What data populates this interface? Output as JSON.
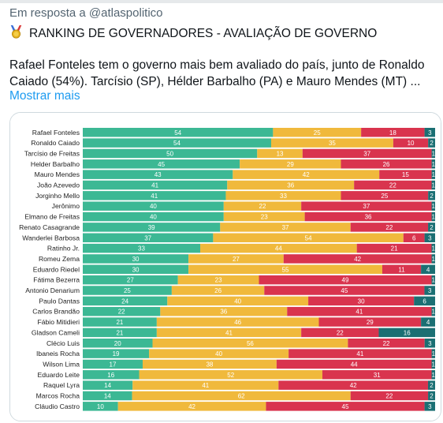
{
  "reply": {
    "prefix": "Em resposta a",
    "handle": "@atlaspolitico"
  },
  "tweet": {
    "title": "RANKING DE GOVERNADORES - AVALIAÇÃO DE GOVERNO",
    "text_line1": "Rafael Fonteles tem o governo mais bem avaliado do país, junto de Ronaldo",
    "text_line2": "Caiado (54%). Tarcísio (SP), Hélder Barbalho (PA) e Mauro Mendes (MT) ...",
    "show_more": "Mostrar mais"
  },
  "icons": {
    "medal": "medal-icon"
  },
  "colors": {
    "positive": "#3cb894",
    "regular": "#f0b93c",
    "negative": "#d9344e",
    "unknown": "#1b6f73",
    "link": "#1d9bf0"
  },
  "chart_data": {
    "type": "bar",
    "orientation": "horizontal-stacked-100",
    "categories": [
      "Rafael Fonteles",
      "Ronaldo Caiado",
      "Tarcísio de Freitas",
      "Helder Barbalho",
      "Mauro Mendes",
      "João Azevedo",
      "Jorginho Mello",
      "Jerônimo",
      "Elmano de Freitas",
      "Renato Casagrande",
      "Wanderlei Barbosa",
      "Ratinho Jr.",
      "Romeu Zema",
      "Eduardo Riedel",
      "Fátima Bezerra",
      "Antonio Denarium",
      "Paulo Dantas",
      "Carlos Brandão",
      "Fábio Mitidieri",
      "Gladson Cameli",
      "Clécio Luis",
      "Ibaneis Rocha",
      "Wilson Lima",
      "Eduardo Leite",
      "Raquel Lyra",
      "Marcos Rocha",
      "Cláudio Castro"
    ],
    "series": [
      {
        "color": "#3cb894",
        "values": [
          54,
          54,
          50,
          45,
          43,
          41,
          41,
          40,
          40,
          39,
          37,
          33,
          30,
          30,
          27,
          25,
          24,
          22,
          21,
          21,
          20,
          19,
          17,
          16,
          14,
          14,
          10
        ]
      },
      {
        "color": "#f0b93c",
        "values": [
          25,
          35,
          13,
          29,
          42,
          36,
          33,
          22,
          23,
          37,
          54,
          44,
          27,
          55,
          23,
          26,
          40,
          36,
          46,
          41,
          56,
          40,
          38,
          52,
          41,
          62,
          42
        ]
      },
      {
        "color": "#d9344e",
        "values": [
          18,
          10,
          37,
          26,
          15,
          22,
          25,
          37,
          36,
          22,
          6,
          21,
          42,
          11,
          49,
          45,
          30,
          41,
          29,
          22,
          22,
          41,
          44,
          31,
          42,
          22,
          45
        ]
      },
      {
        "color": "#1b6f73",
        "values": [
          3,
          2,
          1,
          1,
          1,
          1,
          2,
          1,
          1,
          2,
          3,
          1,
          1,
          4,
          1,
          3,
          6,
          1,
          4,
          16,
          3,
          1,
          1,
          1,
          2,
          2,
          3
        ]
      }
    ]
  }
}
